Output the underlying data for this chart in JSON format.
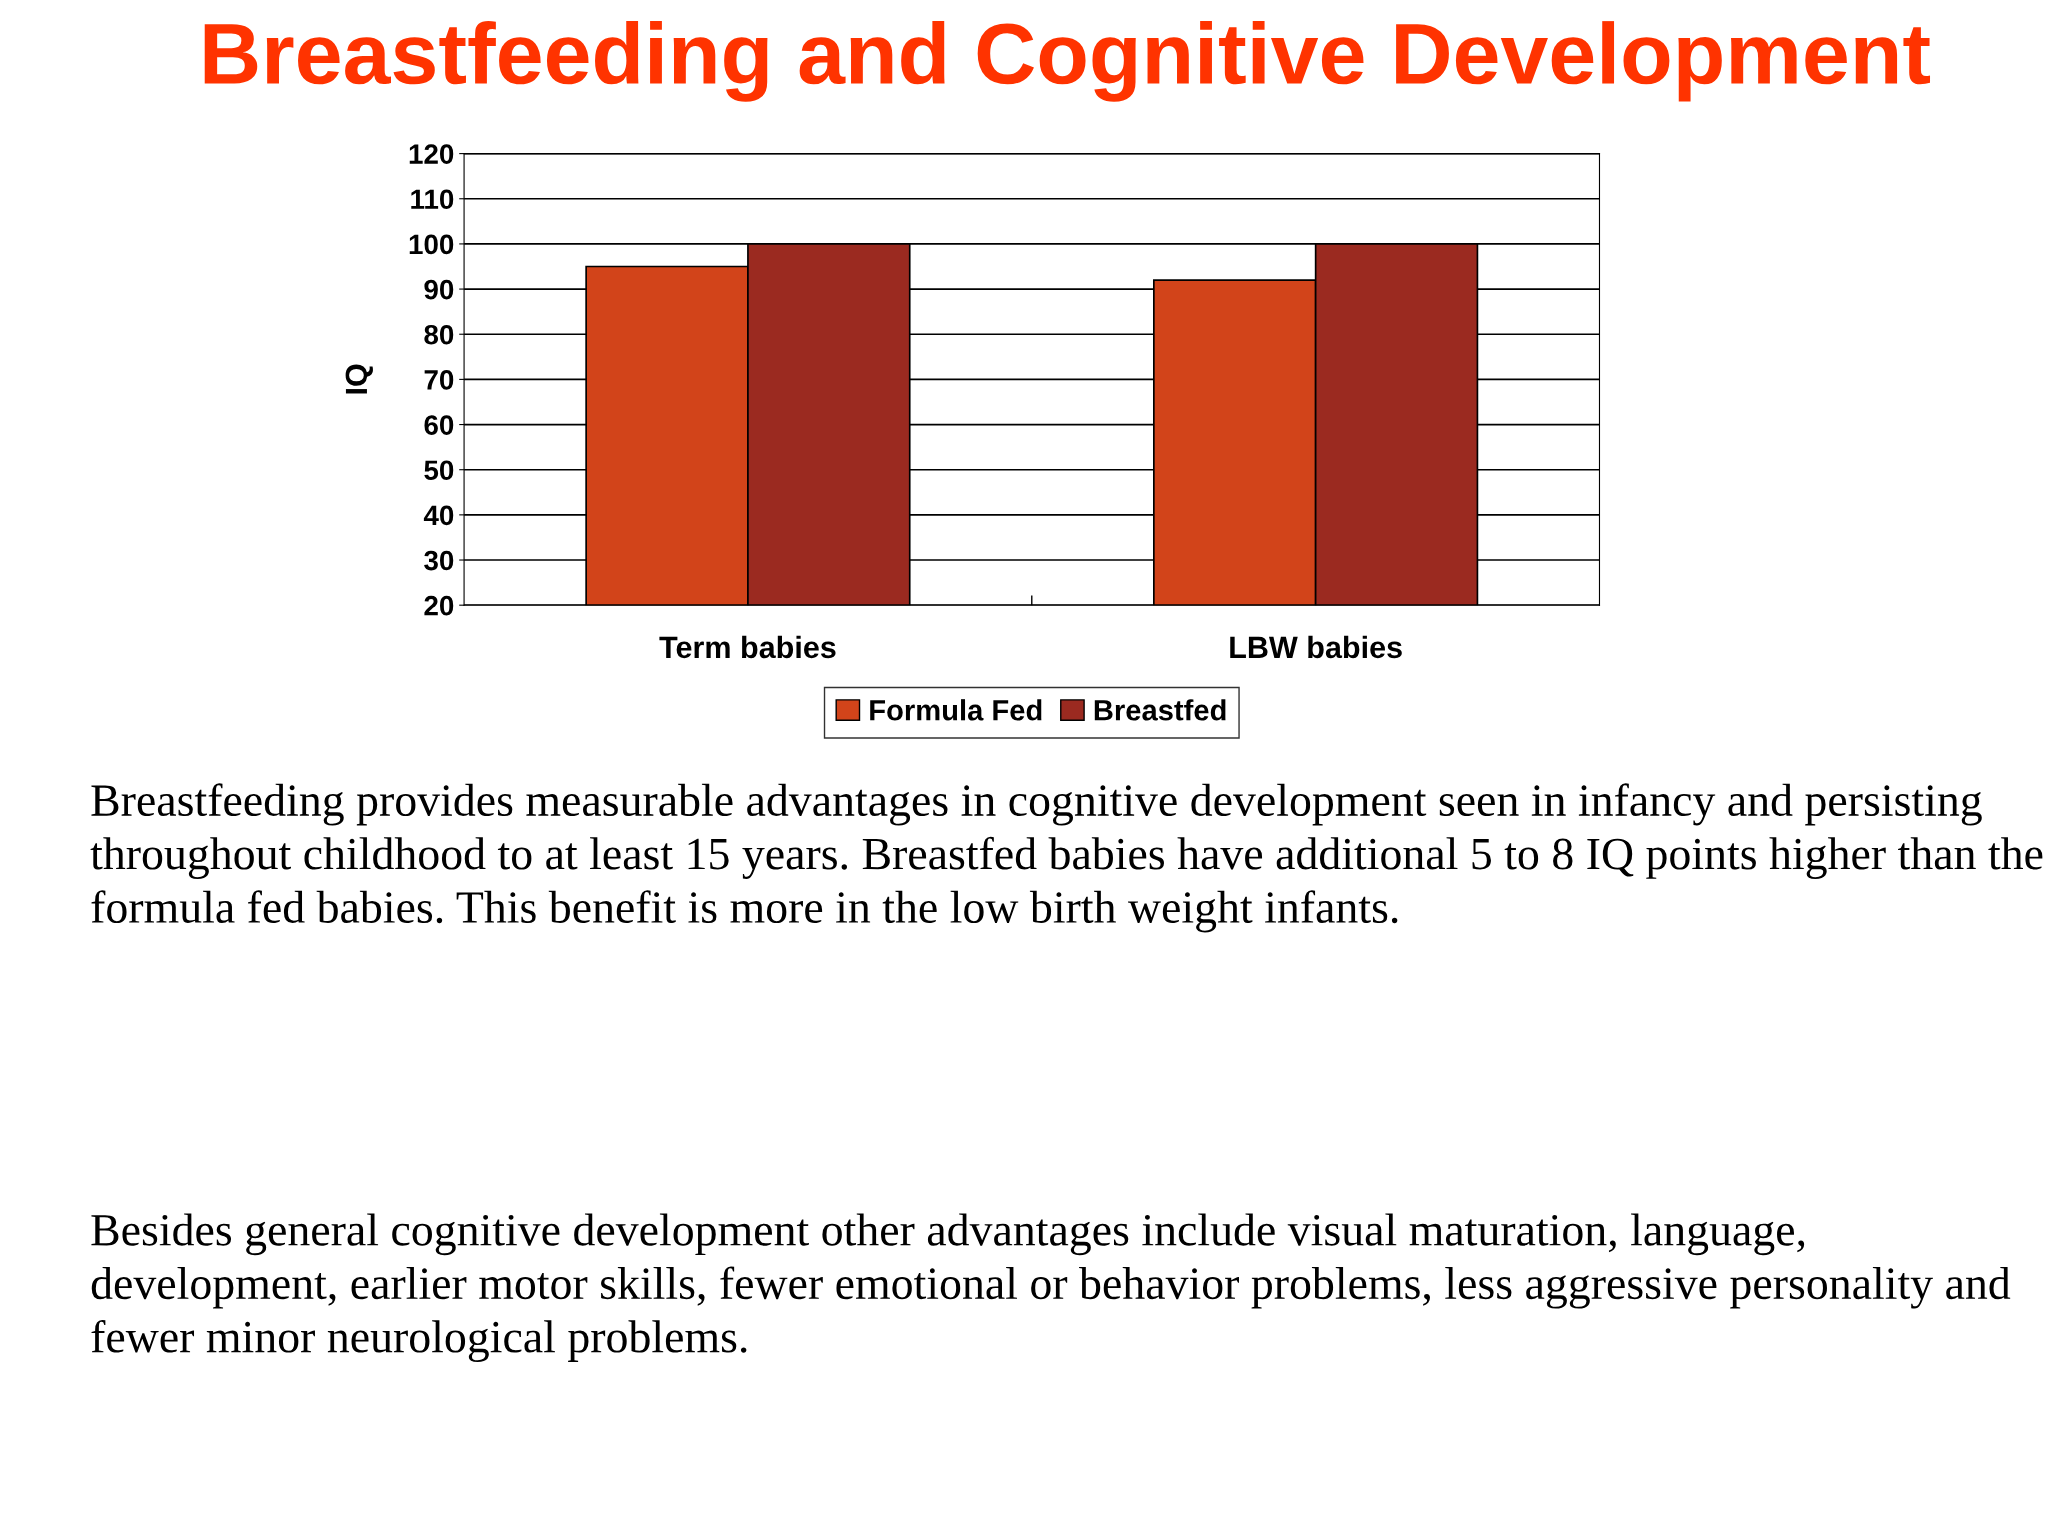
{
  "chart_data": {
    "type": "bar",
    "title": "Breastfeeding and Cognitive Development",
    "ylabel": "IQ",
    "categories": [
      "Term babies",
      "LBW babies"
    ],
    "series": [
      {
        "name": "Formula Fed",
        "color": "#d2441a",
        "values": [
          95,
          92
        ]
      },
      {
        "name": "Breastfed",
        "color": "#9b2a20",
        "values": [
          100,
          100
        ]
      }
    ],
    "ylim": [
      20,
      120
    ],
    "yticks": [
      20,
      30,
      40,
      50,
      60,
      70,
      80,
      90,
      100,
      110,
      120
    ],
    "grid": "y",
    "legend": "bottom",
    "annotations": [
      "Breastfeeding provides measurable advantages in cognitive development seen in infancy and persisting throughout childhood to at least 15 years. Breastfed babies have additional 5 to 8 IQ points higher than the formula fed babies. This benefit is more in the low birth weight infants.",
      "Besides general cognitive development other advantages include visual maturation, language, development, earlier motor skills, fewer emotional or behavior problems, less aggressive personality and fewer minor neurological problems."
    ]
  }
}
